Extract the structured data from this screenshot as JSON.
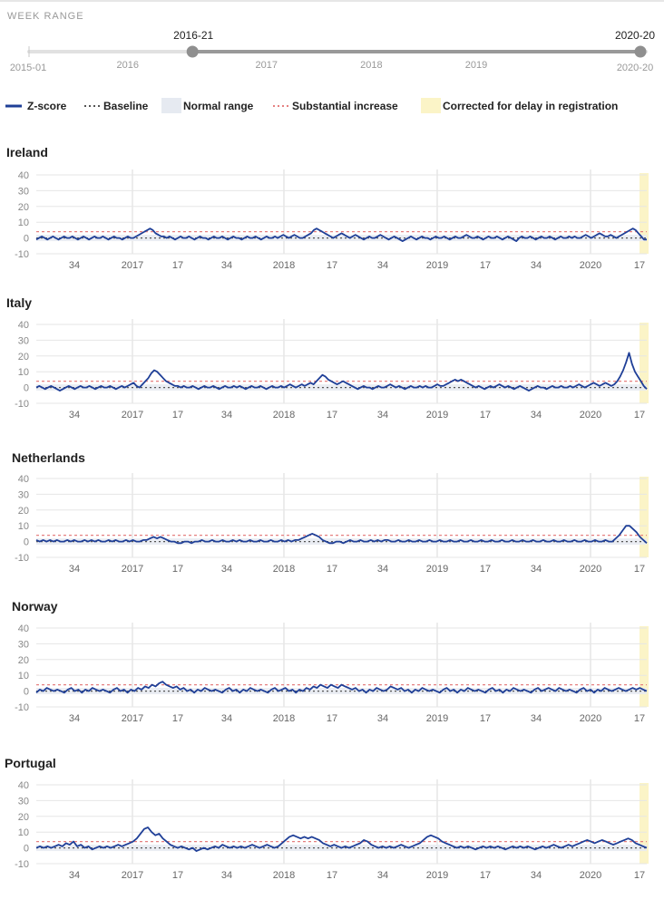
{
  "week_range": {
    "title": "WEEK RANGE",
    "start_label": "2015-01",
    "end_label": "2020-20",
    "selected_start": "2016-21",
    "selected_end": "2020-20",
    "selected_start_fraction": 0.265,
    "selected_end_fraction": 1.0,
    "years": [
      "2016",
      "2017",
      "2018",
      "2019"
    ],
    "year_fractions": [
      0.16,
      0.385,
      0.555,
      0.725
    ]
  },
  "legend": {
    "zscore": "Z-score",
    "baseline": "Baseline",
    "normal_range": "Normal range",
    "substantial_increase": "Substantial increase",
    "corrected": "Corrected for delay in registration"
  },
  "colors": {
    "line": "#1f3f97",
    "baseline": "#555555",
    "normal_band": "#e6eaf1",
    "threshold": "#e58080",
    "corrected_band": "#fbf4c7",
    "grid": "#e6e6e6",
    "slider_active": "#999999",
    "slider_track": "#e1e1e1",
    "slider_handle": "#8f8f8f"
  },
  "chart_data": [
    {
      "type": "line",
      "title": "Ireland",
      "x_ticks": [
        "34",
        "2017",
        "17",
        "34",
        "2018",
        "17",
        "34",
        "2019",
        "17",
        "34",
        "2020",
        "17"
      ],
      "ylim": [
        -10,
        40
      ],
      "y_ticks": [
        "40",
        "30",
        "20",
        "10",
        "0",
        "-10"
      ],
      "x_range": [
        "2016-21",
        "2020-20"
      ],
      "threshold": 4,
      "normal_range": [
        -2,
        2
      ],
      "series": [
        {
          "values": [
            -1,
            0,
            1,
            0,
            -1,
            0,
            1,
            0,
            -1,
            0,
            1,
            0,
            0,
            1,
            0,
            -1,
            0,
            1,
            0,
            -1,
            0,
            1,
            0,
            0,
            1,
            0,
            -1,
            0,
            1,
            0,
            0,
            -1,
            0,
            1,
            0,
            0,
            1,
            2,
            3,
            4,
            5,
            6,
            5,
            3,
            2,
            1,
            1,
            0,
            1,
            0,
            -1,
            0,
            1,
            0,
            0,
            1,
            0,
            -1,
            0,
            1,
            0,
            0,
            -1,
            0,
            1,
            0,
            0,
            1,
            0,
            -1,
            0,
            1,
            0,
            0,
            -1,
            0,
            1,
            0,
            0,
            1,
            0,
            -1,
            0,
            1,
            0,
            0,
            1,
            0,
            1,
            2,
            1,
            0,
            1,
            2,
            1,
            0,
            0,
            1,
            2,
            3,
            5,
            6,
            5,
            4,
            3,
            2,
            1,
            0,
            1,
            2,
            3,
            2,
            1,
            0,
            1,
            2,
            1,
            0,
            -1,
            0,
            1,
            0,
            0,
            1,
            2,
            1,
            0,
            -1,
            0,
            1,
            0,
            -1,
            -2,
            -1,
            0,
            1,
            0,
            -1,
            0,
            1,
            0,
            0,
            -1,
            0,
            1,
            0,
            0,
            1,
            0,
            -1,
            0,
            1,
            0,
            0,
            1,
            2,
            1,
            0,
            0,
            1,
            0,
            -1,
            0,
            1,
            0,
            0,
            1,
            0,
            -1,
            0,
            1,
            0,
            -1,
            -2,
            0,
            1,
            0,
            0,
            1,
            0,
            -1,
            0,
            1,
            0,
            0,
            1,
            0,
            -1,
            0,
            1,
            0,
            0,
            1,
            0,
            1,
            0,
            0,
            1,
            2,
            1,
            0,
            1,
            2,
            3,
            2,
            1,
            1,
            2,
            1,
            0,
            1,
            2,
            3,
            4,
            5,
            6,
            5,
            3,
            1,
            -1,
            -1
          ]
        }
      ]
    },
    {
      "type": "line",
      "title": "Italy",
      "x_ticks": [
        "34",
        "2017",
        "17",
        "34",
        "2018",
        "17",
        "34",
        "2019",
        "17",
        "34",
        "2020",
        "17"
      ],
      "ylim": [
        -10,
        40
      ],
      "y_ticks": [
        "40",
        "30",
        "20",
        "10",
        "0",
        "-10"
      ],
      "x_range": [
        "2016-21",
        "2020-20"
      ],
      "threshold": 4,
      "normal_range": [
        -2,
        2
      ],
      "series": [
        {
          "values": [
            0,
            1,
            0,
            -1,
            0,
            1,
            0,
            -1,
            -2,
            -1,
            0,
            1,
            0,
            -1,
            0,
            1,
            0,
            0,
            1,
            0,
            -1,
            0,
            1,
            0,
            0,
            1,
            0,
            -1,
            0,
            1,
            0,
            1,
            2,
            3,
            1,
            0,
            2,
            4,
            6,
            9,
            11,
            10,
            8,
            6,
            4,
            3,
            2,
            1,
            1,
            0,
            1,
            0,
            0,
            1,
            0,
            -1,
            0,
            1,
            0,
            0,
            1,
            0,
            -1,
            0,
            1,
            0,
            0,
            1,
            0,
            1,
            0,
            -1,
            0,
            1,
            0,
            0,
            1,
            0,
            -1,
            0,
            1,
            0,
            0,
            1,
            0,
            1,
            2,
            1,
            0,
            1,
            2,
            1,
            2,
            3,
            2,
            4,
            6,
            8,
            7,
            5,
            4,
            3,
            2,
            3,
            4,
            3,
            2,
            1,
            0,
            -1,
            0,
            1,
            0,
            0,
            -1,
            0,
            1,
            0,
            0,
            1,
            2,
            1,
            0,
            1,
            0,
            -1,
            0,
            1,
            0,
            0,
            1,
            0,
            1,
            0,
            0,
            1,
            2,
            1,
            1,
            2,
            3,
            4,
            5,
            4,
            5,
            4,
            3,
            2,
            1,
            0,
            1,
            0,
            -1,
            0,
            1,
            0,
            1,
            2,
            1,
            0,
            1,
            0,
            -1,
            0,
            1,
            0,
            -1,
            -2,
            -1,
            0,
            1,
            0,
            0,
            -1,
            0,
            1,
            0,
            0,
            1,
            0,
            0,
            1,
            0,
            1,
            2,
            1,
            0,
            1,
            2,
            3,
            2,
            1,
            2,
            3,
            2,
            1,
            2,
            4,
            7,
            11,
            16,
            22,
            15,
            10,
            7,
            4,
            1,
            -1
          ]
        }
      ]
    },
    {
      "type": "line",
      "title": "Netherlands",
      "x_ticks": [
        "34",
        "2017",
        "17",
        "34",
        "2018",
        "17",
        "34",
        "2019",
        "17",
        "34",
        "2020",
        "17"
      ],
      "ylim": [
        -10,
        40
      ],
      "y_ticks": [
        "40",
        "30",
        "20",
        "10",
        "0",
        "-10"
      ],
      "x_range": [
        "2016-21",
        "2020-20"
      ],
      "threshold": 4,
      "normal_range": [
        -2,
        2
      ],
      "series": [
        {
          "values": [
            1,
            0,
            1,
            0,
            1,
            0,
            1,
            0,
            0,
            1,
            0,
            1,
            0,
            0,
            1,
            0,
            1,
            0,
            1,
            0,
            0,
            1,
            0,
            1,
            0,
            0,
            1,
            0,
            1,
            0,
            0,
            1,
            1,
            2,
            3,
            2,
            3,
            2,
            1,
            0,
            0,
            -1,
            -1,
            0,
            0,
            -1,
            0,
            0,
            1,
            0,
            0,
            1,
            0,
            0,
            1,
            0,
            0,
            1,
            0,
            1,
            0,
            0,
            1,
            0,
            0,
            1,
            0,
            0,
            1,
            0,
            0,
            1,
            0,
            1,
            0,
            1,
            1,
            2,
            3,
            4,
            5,
            4,
            3,
            1,
            0,
            -1,
            -1,
            0,
            0,
            -1,
            0,
            1,
            0,
            0,
            1,
            0,
            0,
            1,
            0,
            1,
            0,
            1,
            1,
            0,
            0,
            1,
            0,
            0,
            1,
            0,
            0,
            1,
            0,
            0,
            1,
            0,
            0,
            1,
            0,
            0,
            1,
            0,
            0,
            1,
            0,
            0,
            1,
            0,
            0,
            1,
            0,
            0,
            1,
            0,
            0,
            1,
            0,
            0,
            1,
            0,
            0,
            1,
            0,
            0,
            1,
            0,
            0,
            1,
            0,
            0,
            1,
            0,
            0,
            1,
            0,
            0,
            1,
            0,
            0,
            1,
            0,
            0,
            1,
            0,
            0,
            1,
            0,
            0,
            2,
            4,
            7,
            10,
            10,
            8,
            6,
            3,
            1,
            -1
          ]
        }
      ]
    },
    {
      "type": "line",
      "title": "Norway",
      "x_ticks": [
        "34",
        "2017",
        "17",
        "34",
        "2018",
        "17",
        "34",
        "2019",
        "17",
        "34",
        "2020",
        "17"
      ],
      "ylim": [
        -10,
        40
      ],
      "y_ticks": [
        "40",
        "30",
        "20",
        "10",
        "0",
        "-10"
      ],
      "x_range": [
        "2016-21",
        "2020-20"
      ],
      "threshold": 4,
      "normal_range": [
        -2,
        2
      ],
      "series": [
        {
          "values": [
            -1,
            1,
            0,
            2,
            1,
            0,
            1,
            0,
            -1,
            1,
            2,
            0,
            1,
            -1,
            1,
            0,
            2,
            1,
            0,
            1,
            0,
            -1,
            1,
            2,
            0,
            1,
            -1,
            1,
            0,
            2,
            1,
            3,
            2,
            4,
            3,
            5,
            6,
            4,
            3,
            2,
            3,
            1,
            2,
            0,
            1,
            -1,
            1,
            0,
            2,
            1,
            0,
            1,
            0,
            -1,
            1,
            2,
            0,
            1,
            -1,
            1,
            0,
            2,
            1,
            0,
            1,
            0,
            -1,
            1,
            2,
            0,
            1,
            2,
            0,
            1,
            -1,
            1,
            0,
            2,
            1,
            3,
            2,
            4,
            3,
            2,
            4,
            3,
            2,
            4,
            3,
            2,
            1,
            2,
            0,
            1,
            -1,
            1,
            0,
            2,
            1,
            0,
            1,
            3,
            2,
            1,
            2,
            0,
            1,
            -1,
            1,
            0,
            2,
            1,
            0,
            1,
            0,
            -1,
            1,
            2,
            0,
            1,
            -1,
            1,
            0,
            2,
            1,
            0,
            1,
            0,
            -1,
            1,
            2,
            0,
            1,
            -1,
            1,
            0,
            2,
            1,
            0,
            1,
            0,
            -1,
            1,
            2,
            0,
            1,
            2,
            1,
            0,
            2,
            1,
            0,
            1,
            0,
            -1,
            1,
            2,
            0,
            1,
            -1,
            1,
            0,
            2,
            1,
            0,
            1,
            2,
            1,
            0,
            1,
            2,
            1,
            2,
            1,
            0
          ]
        }
      ]
    },
    {
      "type": "line",
      "title": "Portugal",
      "x_ticks": [
        "34",
        "2017",
        "17",
        "34",
        "2018",
        "17",
        "34",
        "2019",
        "17",
        "34",
        "2020",
        "17"
      ],
      "ylim": [
        -10,
        40
      ],
      "y_ticks": [
        "40",
        "30",
        "20",
        "10",
        "0",
        "-10"
      ],
      "x_range": [
        "2016-21",
        "2020-20"
      ],
      "threshold": 4,
      "normal_range": [
        -2,
        2
      ],
      "series": [
        {
          "values": [
            0,
            1,
            0,
            1,
            0,
            1,
            2,
            1,
            3,
            2,
            4,
            1,
            2,
            0,
            1,
            -1,
            0,
            1,
            0,
            1,
            0,
            1,
            2,
            1,
            2,
            3,
            4,
            6,
            9,
            12,
            13,
            10,
            8,
            9,
            6,
            4,
            2,
            1,
            0,
            1,
            0,
            -1,
            0,
            -2,
            -1,
            0,
            -1,
            0,
            1,
            0,
            2,
            1,
            0,
            1,
            0,
            1,
            0,
            1,
            2,
            1,
            0,
            1,
            2,
            1,
            0,
            1,
            3,
            5,
            7,
            8,
            7,
            6,
            7,
            6,
            7,
            6,
            5,
            3,
            2,
            1,
            2,
            1,
            0,
            1,
            0,
            1,
            2,
            3,
            5,
            4,
            2,
            1,
            0,
            1,
            0,
            1,
            0,
            1,
            2,
            1,
            0,
            1,
            2,
            3,
            5,
            7,
            8,
            7,
            6,
            4,
            3,
            2,
            1,
            0,
            1,
            0,
            1,
            0,
            -1,
            0,
            1,
            0,
            1,
            0,
            1,
            0,
            -1,
            0,
            1,
            0,
            1,
            0,
            1,
            0,
            -1,
            0,
            1,
            0,
            1,
            2,
            1,
            0,
            1,
            2,
            1,
            2,
            3,
            4,
            5,
            4,
            3,
            4,
            5,
            4,
            3,
            2,
            3,
            4,
            5,
            6,
            5,
            3,
            2,
            1,
            0
          ]
        }
      ]
    }
  ]
}
